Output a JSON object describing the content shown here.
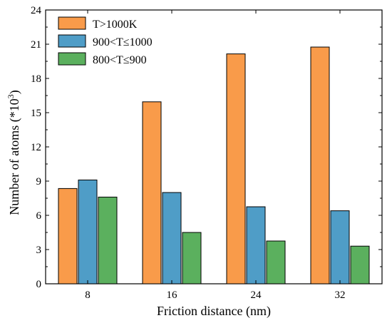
{
  "chart_data": {
    "type": "bar",
    "xlabel": "Friction distance (nm)",
    "ylabel_main": "Number of atoms (*10",
    "ylabel_sup": "3",
    "ylabel_end": ")",
    "ylim": [
      0,
      24
    ],
    "yticks": [
      0,
      3,
      6,
      9,
      12,
      15,
      18,
      21,
      24
    ],
    "categories": [
      "8",
      "16",
      "24",
      "32"
    ],
    "series": [
      {
        "name": "T>1000K",
        "color": "#f99b4a",
        "values": [
          8.35,
          15.95,
          20.15,
          20.75
        ]
      },
      {
        "name": "900<T≤1000",
        "color": "#4f9dc7",
        "values": [
          9.1,
          8.0,
          6.75,
          6.4
        ]
      },
      {
        "name": "800<T≤900",
        "color": "#5bb05e",
        "values": [
          7.6,
          4.5,
          3.75,
          3.3
        ]
      }
    ],
    "legend_position": "top-left",
    "grid": false
  }
}
